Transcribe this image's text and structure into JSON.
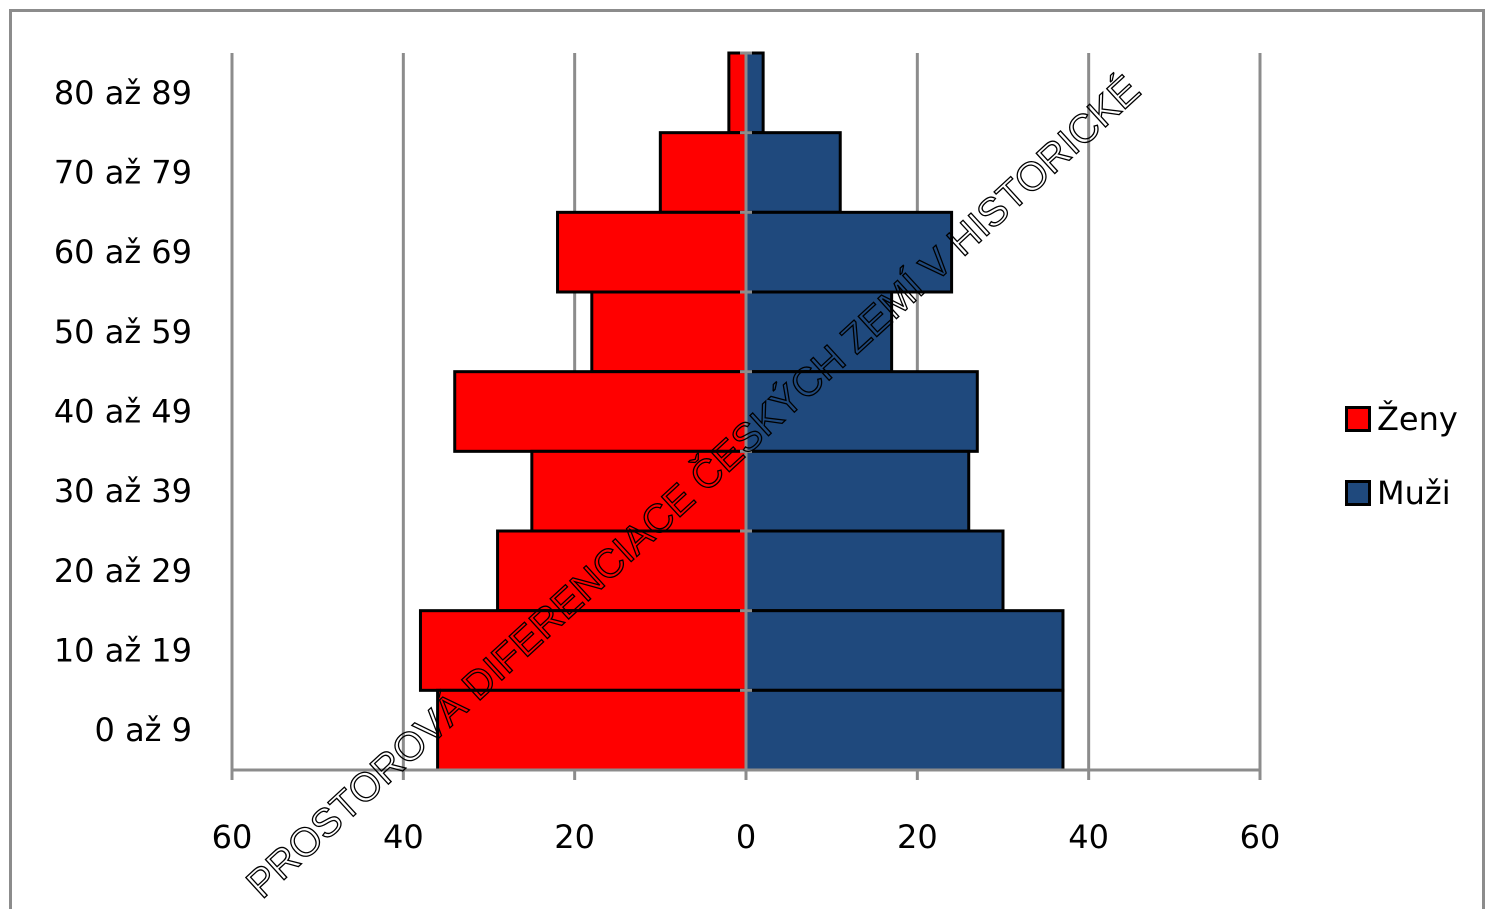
{
  "chart_data": {
    "type": "bar",
    "orientation": "horizontal-population-pyramid",
    "categories": [
      "80 až 89",
      "70 až 79",
      "60 až 69",
      "50 až 59",
      "40 až 49",
      "30 až 39",
      "20 až 29",
      "10 až 19",
      "0 až 9"
    ],
    "series": [
      {
        "name": "Ženy",
        "color": "#ff0000",
        "side": "left",
        "values": [
          2,
          10,
          22,
          18,
          34,
          25,
          29,
          38,
          36
        ]
      },
      {
        "name": "Muži",
        "color": "#1f497d",
        "side": "right",
        "values": [
          2,
          11,
          24,
          17,
          27,
          26,
          30,
          37,
          37
        ]
      }
    ],
    "xlim": [
      -60,
      60
    ],
    "x_tick_labels": [
      "60",
      "40",
      "20",
      "0",
      "20",
      "40",
      "60"
    ],
    "x_tick_values": [
      -60,
      -40,
      -20,
      0,
      20,
      40,
      60
    ],
    "grid": "vertical",
    "legend_position": "right"
  },
  "watermark": "PROSTOROVÁ DIFERENCIACE ČESKÝCH ZEMÍ V HISTORICKÉ"
}
